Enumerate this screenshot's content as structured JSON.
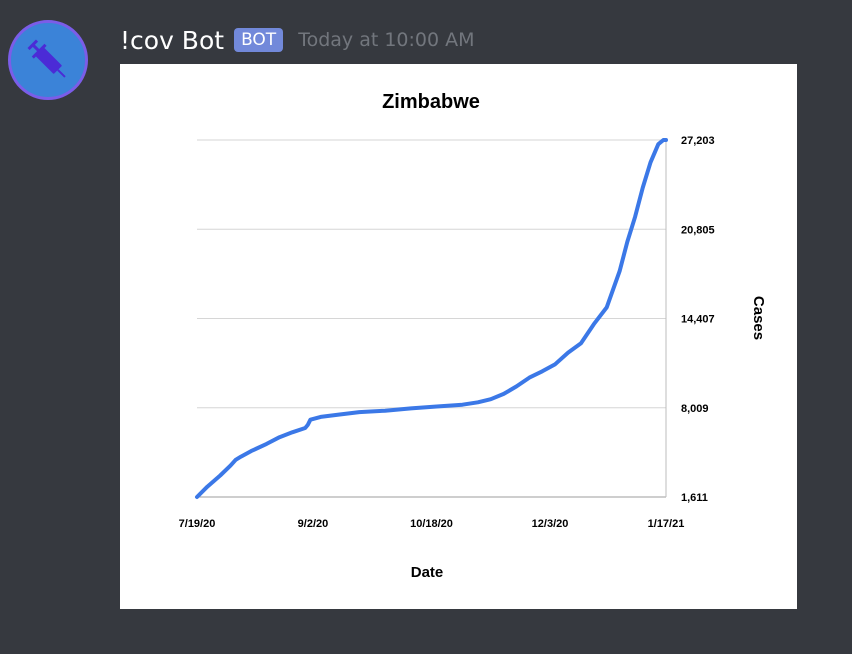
{
  "message": {
    "username": "!cov Bot",
    "bot_tag": "BOT",
    "timestamp": "Today at 10:00 AM",
    "avatar_icon": "syringe-icon"
  },
  "colors": {
    "background": "#36393f",
    "avatar_bg": "#3b83d8",
    "avatar_ring": "#7b5de8",
    "bot_tag": "#7289da",
    "line": "#3b78e7"
  },
  "chart_data": {
    "type": "line",
    "title": "Zimbabwe",
    "xlabel": "Date",
    "ylabel": "Cases",
    "x_ticks": [
      "7/19/20",
      "9/2/20",
      "10/18/20",
      "12/3/20",
      "1/17/21"
    ],
    "y_ticks": [
      "1,611",
      "8,009",
      "14,407",
      "20,805",
      "27,203"
    ],
    "ylim": [
      1611,
      27203
    ],
    "xlim": [
      "2020-07-19",
      "2021-01-17"
    ],
    "y_axis_side": "right",
    "grid": "horizontal",
    "series": [
      {
        "x": [
          "2020-07-19",
          "2020-07-23",
          "2020-07-28",
          "2020-08-01",
          "2020-08-03",
          "2020-08-05",
          "2020-08-09",
          "2020-08-15",
          "2020-08-20",
          "2020-08-25",
          "2020-08-30",
          "2020-08-31",
          "2020-09-01",
          "2020-09-05",
          "2020-09-12",
          "2020-09-20",
          "2020-09-30",
          "2020-10-10",
          "2020-10-20",
          "2020-10-30",
          "2020-11-05",
          "2020-11-10",
          "2020-11-15",
          "2020-11-20",
          "2020-11-25",
          "2020-11-30",
          "2020-12-05",
          "2020-12-10",
          "2020-12-15",
          "2020-12-20",
          "2020-12-25",
          "2020-12-30",
          "2021-01-02",
          "2021-01-05",
          "2021-01-08",
          "2021-01-11",
          "2021-01-14",
          "2021-01-16",
          "2021-01-17"
        ],
        "y": [
          1611,
          2350,
          3150,
          3860,
          4280,
          4500,
          4900,
          5420,
          5900,
          6250,
          6560,
          6780,
          7150,
          7350,
          7520,
          7700,
          7800,
          7960,
          8100,
          8230,
          8400,
          8620,
          9000,
          9540,
          10170,
          10620,
          11130,
          11960,
          12630,
          14000,
          15200,
          17800,
          19900,
          21700,
          23800,
          25600,
          26900,
          27203,
          27203
        ]
      }
    ]
  }
}
